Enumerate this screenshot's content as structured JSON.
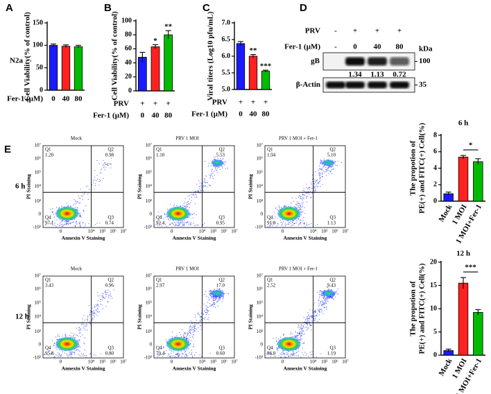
{
  "chart_data": [
    {
      "type": "bar",
      "panel_label": "A",
      "side_label": "N2a",
      "ylabel": "Cell Viability(% of control)",
      "categories": [
        "0",
        "40",
        "80"
      ],
      "category_title": "Fer-1 (μM)",
      "values": [
        100,
        98,
        97
      ],
      "errors": [
        3,
        3,
        3
      ],
      "colors": [
        "#1a1aff",
        "#ff2020",
        "#00bb00"
      ],
      "ylim": [
        0,
        150
      ],
      "yticks": [
        0,
        50,
        100,
        150
      ]
    },
    {
      "type": "bar",
      "panel_label": "B",
      "ylabel": "Cell Viability(% of control)",
      "extra_rows": [
        {
          "name": "PRV",
          "labels": [
            "+",
            "+",
            "+"
          ]
        }
      ],
      "categories": [
        "0",
        "40",
        "80"
      ],
      "category_title": "Fer-1 (μM)",
      "values": [
        48,
        63,
        80
      ],
      "errors": [
        7,
        3,
        6
      ],
      "colors": [
        "#1a1aff",
        "#ff2020",
        "#00bb00"
      ],
      "ylim": [
        0,
        100
      ],
      "yticks": [
        0,
        20,
        40,
        60,
        80,
        100
      ],
      "annotations": [
        {
          "index": 1,
          "label": "*"
        },
        {
          "index": 2,
          "label": "**"
        }
      ]
    },
    {
      "type": "bar",
      "panel_label": "C",
      "ylabel": "Viral titers (Log10 pfu/mL)",
      "extra_rows": [
        {
          "name": "PRV",
          "labels": [
            "+",
            "+",
            "+"
          ]
        }
      ],
      "categories": [
        "0",
        "40",
        "80"
      ],
      "category_title": "Fer-1 (μM)",
      "values": [
        6.38,
        6.0,
        5.55
      ],
      "errors": [
        0.06,
        0.05,
        0.03
      ],
      "colors": [
        "#1a1aff",
        "#ff2020",
        "#00bb00"
      ],
      "ylim": [
        5,
        7
      ],
      "yticks": [
        {
          "value": 5,
          "label": "5.0"
        },
        {
          "value": 5.5,
          "label": "5.5"
        },
        {
          "value": 6,
          "label": "6.0"
        },
        {
          "value": 6.5,
          "label": "6.5"
        },
        {
          "value": 7,
          "label": "7.0"
        }
      ],
      "annotations": [
        {
          "index": 1,
          "label": "**"
        },
        {
          "index": 2,
          "label": "***"
        }
      ]
    },
    {
      "type": "bar",
      "title": "6 h",
      "ylabel": [
        "The propotion of",
        "PE(+) and FITC(+) Cell(%)"
      ],
      "categories": [
        "Mock",
        "1 MOI",
        "1 MOI+Fer-1"
      ],
      "values": [
        0.9,
        5.35,
        4.8
      ],
      "errors": [
        0.2,
        0.2,
        0.35
      ],
      "colors": [
        "#1a1aff",
        "#ff2020",
        "#00bb00"
      ],
      "ylim": [
        0,
        8
      ],
      "yticks": [
        0,
        2,
        4,
        6,
        8
      ],
      "brackets": [
        {
          "from": 1,
          "to": 2,
          "label": "*"
        }
      ]
    },
    {
      "type": "bar",
      "title": "12 h",
      "ylabel": [
        "The propotion of",
        "PE(+) and FITC(+) Cell(%)"
      ],
      "categories": [
        "Mock",
        "1 MOI",
        "1 MOI+Fer-1"
      ],
      "values": [
        1.0,
        15.5,
        9.2
      ],
      "errors": [
        0.3,
        1.2,
        0.6
      ],
      "colors": [
        "#1a1aff",
        "#ff2020",
        "#00bb00"
      ],
      "ylim": [
        0,
        20
      ],
      "yticks": [
        0,
        5,
        10,
        15,
        20
      ],
      "brackets": [
        {
          "from": 1,
          "to": 2,
          "label": "***"
        }
      ]
    }
  ],
  "blot": {
    "label": "D",
    "columns": [
      {
        "name": "PRV",
        "labels": [
          "-",
          "+",
          "+",
          "+"
        ]
      },
      {
        "name": "Fer-1 (μM)",
        "labels": [
          "-",
          "0",
          "40",
          "80"
        ]
      }
    ],
    "unit": "kDa",
    "bands": [
      {
        "name": "gB",
        "marker": "100",
        "ratios": [
          "1.34",
          "1.13",
          "0.72"
        ]
      },
      {
        "name": "β-Actin",
        "marker": "35"
      }
    ]
  },
  "flow": {
    "label": "E",
    "xlabel": "Annexin V Staining",
    "ylabel": "PI Staining",
    "xticks": [
      "0",
      "10⁴",
      "10⁵",
      "10⁶",
      "10⁷"
    ],
    "yticks": [
      "10⁷",
      "10⁶",
      "10⁵",
      "10⁴",
      "10³",
      "0",
      "-10³"
    ],
    "rows": [
      {
        "label": "6 h",
        "plots": [
          {
            "title": "Mock",
            "quadrants": [
              {
                "name": "Q1",
                "value": "1.20"
              },
              {
                "name": "Q2",
                "value": "0.98"
              },
              {
                "name": "Q3",
                "value": "0.74"
              },
              {
                "name": "Q4",
                "value": "97.1"
              }
            ]
          },
          {
            "title": "PRV 1 MOI",
            "quadrants": [
              {
                "name": "Q1",
                "value": "1.10"
              },
              {
                "name": "Q2",
                "value": "5.53"
              },
              {
                "name": "Q3",
                "value": "0.95"
              },
              {
                "name": "Q4",
                "value": "92.4"
              }
            ]
          },
          {
            "title": "PRV 1 MOI + Fer-1",
            "quadrants": [
              {
                "name": "Q1",
                "value": "1.94"
              },
              {
                "name": "Q2",
                "value": "5.10"
              },
              {
                "name": "Q3",
                "value": "1.13"
              },
              {
                "name": "Q4",
                "value": "91.8"
              }
            ]
          }
        ]
      },
      {
        "label": "12 h",
        "plots": [
          {
            "title": "Mock",
            "quadrants": [
              {
                "name": "Q1",
                "value": "3.43"
              },
              {
                "name": "Q2",
                "value": "0.96"
              },
              {
                "name": "Q3",
                "value": "0.80"
              },
              {
                "name": "Q4",
                "value": "95.8"
              }
            ]
          },
          {
            "title": "PRV 1 MOI",
            "quadrants": [
              {
                "name": "Q1",
                "value": "2.97"
              },
              {
                "name": "Q2",
                "value": "17.0"
              },
              {
                "name": "Q3",
                "value": "0.60"
              },
              {
                "name": "Q4",
                "value": "79.4"
              }
            ]
          },
          {
            "title": "PRV 1 MOI + Fer-1",
            "quadrants": [
              {
                "name": "Q1",
                "value": "2.52"
              },
              {
                "name": "Q2",
                "value": "9.43"
              },
              {
                "name": "Q3",
                "value": "1.19"
              },
              {
                "name": "Q4",
                "value": "86.9"
              }
            ]
          }
        ]
      }
    ]
  }
}
